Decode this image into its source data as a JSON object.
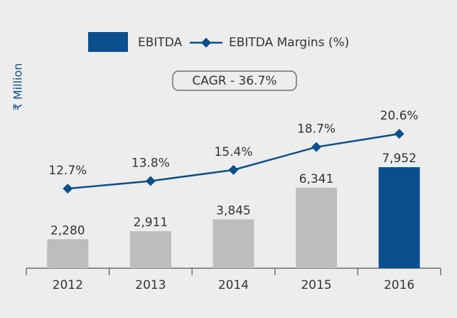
{
  "chart_data": {
    "type": "bar-line",
    "y_label": "₹ Million",
    "annotation": "CAGR - 36.7%",
    "categories": [
      "2012",
      "2013",
      "2014",
      "2015",
      "2016"
    ],
    "series": [
      {
        "name": "EBITDA",
        "type": "bar",
        "color": "#0b4f8c",
        "colors": [
          "#bdbdbd",
          "#bdbdbd",
          "#bdbdbd",
          "#bdbdbd",
          "#0b4f8c"
        ],
        "values": [
          2280,
          2911,
          3845,
          6341,
          7952
        ],
        "value_labels": [
          "2,280",
          "2,911",
          "3,845",
          "6,341",
          "7,952"
        ]
      },
      {
        "name": "EBITDA Margins (%)",
        "type": "line",
        "color": "#0b4f8c",
        "values": [
          12.7,
          13.8,
          15.4,
          18.7,
          20.6
        ],
        "value_labels": [
          "12.7%",
          "13.8%",
          "15.4%",
          "18.7%",
          "20.6%"
        ]
      }
    ]
  }
}
